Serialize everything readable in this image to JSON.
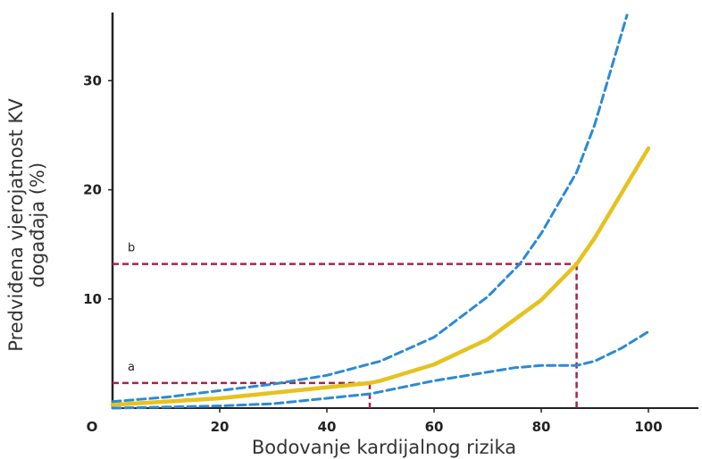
{
  "chart_data": {
    "type": "line",
    "title": "",
    "xlabel": "Bodovanje kardijalnog rizika",
    "ylabel_lines": [
      "Predviđena vjerojatnost KV",
      "događaja (%)"
    ],
    "xlim": [
      0,
      110
    ],
    "ylim": [
      0,
      36
    ],
    "x_ticks": [
      0,
      20,
      40,
      60,
      80,
      100
    ],
    "x_tick_labels": [
      "O",
      "20",
      "40",
      "60",
      "80",
      "100"
    ],
    "y_ticks": [
      10,
      20,
      30
    ],
    "y_tick_labels": [
      "10",
      "20",
      "30"
    ],
    "grid": false,
    "colors": {
      "main": "#e6c21f",
      "band": "#2b8ad6",
      "reference": "#a3254a",
      "axis": "#222222"
    },
    "series": [
      {
        "role": "estimate",
        "x": [
          0,
          10,
          20,
          30,
          40,
          48,
          50,
          60,
          70,
          80,
          86.6,
          90,
          100
        ],
        "y": [
          0.3,
          0.6,
          0.9,
          1.4,
          1.9,
          2.3,
          2.5,
          4.0,
          6.3,
          9.9,
          13.2,
          15.6,
          23.8
        ]
      },
      {
        "role": "upper",
        "x": [
          0,
          10,
          20,
          30,
          40,
          50,
          60,
          70,
          76,
          80,
          86.6,
          90,
          96
        ],
        "y": [
          0.6,
          1.0,
          1.6,
          2.2,
          3.0,
          4.3,
          6.5,
          10.2,
          13.2,
          16.0,
          21.6,
          26.0,
          36.0
        ]
      },
      {
        "role": "lower",
        "x": [
          0,
          10,
          20,
          30,
          40,
          48,
          50,
          60,
          70,
          75,
          80,
          86.6,
          90,
          95,
          100
        ],
        "y": [
          0.0,
          0.1,
          0.2,
          0.4,
          0.9,
          1.3,
          1.5,
          2.5,
          3.3,
          3.7,
          3.9,
          3.9,
          4.3,
          5.5,
          7.0
        ]
      }
    ],
    "annotations": [
      {
        "label": "a",
        "x": 48,
        "y": 2.3
      },
      {
        "label": "b",
        "x": 86.6,
        "y": 13.2
      }
    ]
  }
}
